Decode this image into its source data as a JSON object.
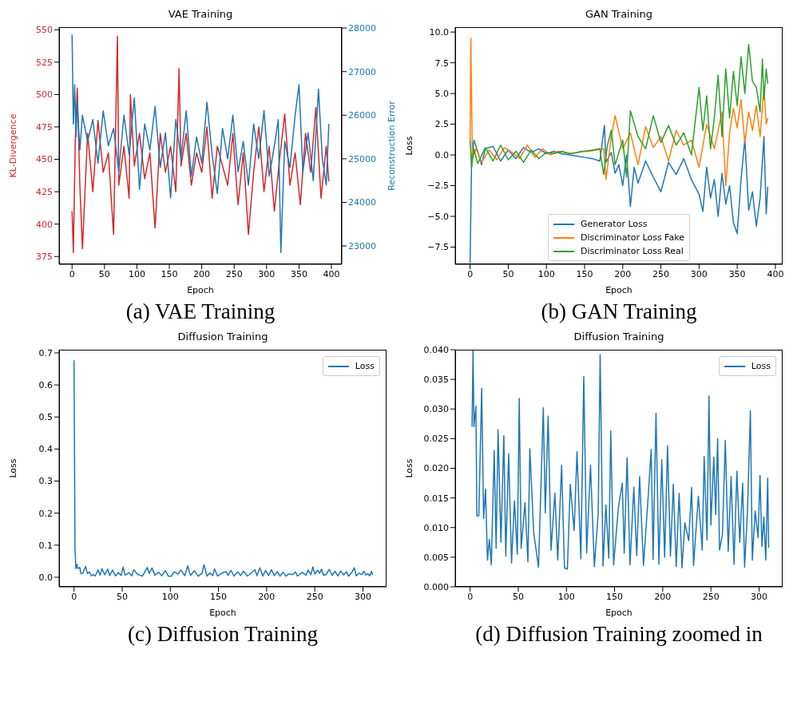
{
  "chart_data": [
    {
      "type": "line",
      "title": "VAE Training",
      "xlabel": "Epoch",
      "ylabel": "KL-Divergence",
      "y2label": "Reconstruction Error",
      "annotations": [
        "(a) VAE Training"
      ],
      "xlim": [
        -20,
        416
      ],
      "xticks": [
        0,
        50,
        100,
        150,
        200,
        250,
        300,
        350,
        400
      ],
      "ylim": [
        369,
        552
      ],
      "yticks": [
        375,
        400,
        425,
        450,
        475,
        500,
        525,
        550
      ],
      "y2lim": [
        22580,
        28020
      ],
      "y2ticks": [
        23000,
        24000,
        25000,
        26000,
        27000,
        28000
      ],
      "series": [
        {
          "color": "#d62728",
          "x": [
            0,
            2,
            5,
            8,
            12,
            16,
            24,
            32,
            40,
            48,
            56,
            64,
            68,
            70,
            72,
            80,
            88,
            90,
            96,
            104,
            112,
            120,
            128,
            136,
            144,
            152,
            160,
            165,
            168,
            176,
            184,
            192,
            200,
            208,
            216,
            224,
            232,
            240,
            248,
            256,
            264,
            272,
            280,
            288,
            296,
            304,
            312,
            320,
            328,
            336,
            344,
            352,
            360,
            368,
            376,
            384,
            392,
            396
          ],
          "values": [
            410,
            378,
            465,
            505,
            430,
            381,
            470,
            425,
            480,
            440,
            455,
            392,
            495,
            545,
            430,
            460,
            420,
            500,
            445,
            470,
            435,
            455,
            397,
            470,
            440,
            460,
            425,
            520,
            445,
            470,
            430,
            455,
            440,
            475,
            420,
            460,
            445,
            430,
            470,
            415,
            455,
            392,
            440,
            475,
            425,
            460,
            410,
            450,
            485,
            430,
            455,
            415,
            470,
            440,
            490,
            420,
            460,
            433
          ]
        },
        {
          "color": "#1f77b4",
          "axis": "y2",
          "x": [
            0,
            2,
            4,
            6,
            8,
            12,
            16,
            24,
            32,
            40,
            48,
            56,
            64,
            72,
            80,
            88,
            96,
            104,
            112,
            120,
            128,
            136,
            144,
            152,
            160,
            168,
            176,
            184,
            192,
            200,
            208,
            216,
            224,
            232,
            240,
            248,
            256,
            264,
            272,
            280,
            288,
            296,
            304,
            312,
            318,
            322,
            328,
            336,
            344,
            350,
            356,
            364,
            372,
            380,
            386,
            392,
            396
          ],
          "values": [
            27850,
            25800,
            26700,
            25500,
            26300,
            25200,
            26000,
            25400,
            25900,
            24900,
            26100,
            25300,
            25700,
            24700,
            26000,
            25100,
            26400,
            24300,
            25800,
            25200,
            26200,
            24800,
            25600,
            24100,
            25900,
            25000,
            26100,
            24600,
            25500,
            24900,
            26300,
            25100,
            24200,
            25700,
            25000,
            26000,
            24700,
            25400,
            24400,
            25800,
            25000,
            26100,
            24600,
            25300,
            25900,
            22850,
            25400,
            24800,
            26000,
            26700,
            24700,
            25600,
            24500,
            26600,
            25000,
            24400,
            25800
          ]
        }
      ]
    },
    {
      "type": "line",
      "title": "GAN Training",
      "xlabel": "Epoch",
      "ylabel": "Loss",
      "legend": "bottom",
      "annotations": [
        "(b) GAN Training"
      ],
      "xlim": [
        -19.5,
        409.5
      ],
      "xticks": [
        0,
        50,
        100,
        150,
        200,
        250,
        300,
        350,
        400
      ],
      "ylim": [
        -8.9,
        10.4
      ],
      "yticks": [
        {
          "value": -7.5,
          "label": "−7.5"
        },
        {
          "value": -5,
          "label": "−5.0"
        },
        {
          "value": -2.5,
          "label": "−2.5"
        },
        {
          "value": 0,
          "label": "0.0"
        },
        {
          "value": 2.5,
          "label": "2.5"
        },
        {
          "value": 5,
          "label": "5.0"
        },
        {
          "value": 7.5,
          "label": "7.5"
        },
        {
          "value": 10,
          "label": "10.0"
        }
      ],
      "series": [
        {
          "name": "Generator Loss",
          "color": "#1f77b4",
          "x": [
            0,
            2,
            5,
            10,
            15,
            20,
            30,
            40,
            50,
            60,
            70,
            80,
            90,
            100,
            110,
            120,
            130,
            140,
            150,
            160,
            170,
            176,
            178,
            185,
            190,
            195,
            200,
            205,
            210,
            215,
            220,
            230,
            240,
            250,
            260,
            270,
            280,
            290,
            300,
            305,
            310,
            315,
            320,
            325,
            330,
            335,
            340,
            345,
            350,
            355,
            360,
            365,
            370,
            375,
            380,
            385,
            388,
            390
          ],
          "values": [
            -8.8,
            -0.3,
            1.2,
            0.3,
            -0.8,
            0.5,
            0.7,
            -0.5,
            0.4,
            -0.3,
            0.6,
            0.2,
            0.5,
            0.1,
            0.3,
            0.1,
            0.0,
            -0.1,
            -0.2,
            -0.3,
            -0.5,
            2.4,
            -0.6,
            0.2,
            -1.5,
            -0.8,
            -2.5,
            0.0,
            -4.2,
            -1.0,
            -2.3,
            -0.5,
            -1.8,
            -3.0,
            -0.6,
            -1.6,
            -0.3,
            -2.0,
            -3.2,
            -4.6,
            -1.0,
            -3.5,
            -2.0,
            -5.0,
            -1.5,
            -4.0,
            -2.5,
            -5.5,
            -6.4,
            -2.0,
            1.3,
            -4.5,
            -3.0,
            -5.8,
            -3.5,
            1.5,
            -4.8,
            -2.6
          ]
        },
        {
          "name": "Discriminator Loss Fake",
          "color": "#ff7f0e",
          "x": [
            0,
            1,
            3,
            8,
            15,
            25,
            35,
            45,
            55,
            65,
            75,
            85,
            95,
            105,
            115,
            125,
            135,
            145,
            155,
            165,
            175,
            178,
            185,
            190,
            200,
            210,
            220,
            230,
            240,
            250,
            260,
            270,
            280,
            290,
            300,
            310,
            320,
            330,
            335,
            340,
            345,
            350,
            355,
            360,
            365,
            370,
            375,
            380,
            385,
            388,
            390
          ],
          "values": [
            1.2,
            9.5,
            -0.3,
            0.5,
            -0.6,
            0.4,
            -0.4,
            0.6,
            0.2,
            -0.3,
            0.8,
            -0.2,
            0.5,
            0.0,
            0.3,
            0.2,
            0.1,
            0.3,
            0.3,
            0.4,
            0.5,
            -2.0,
            1.5,
            3.2,
            0.5,
            1.8,
            -0.8,
            2.3,
            0.6,
            1.5,
            -0.5,
            2.0,
            0.8,
            1.2,
            -1.0,
            2.5,
            0.5,
            3.5,
            -2.5,
            1.8,
            3.8,
            2.2,
            4.5,
            1.0,
            3.5,
            2.0,
            4.0,
            1.5,
            5.5,
            2.5,
            3.0
          ]
        },
        {
          "name": "Discriminator Loss Real",
          "color": "#2ca02c",
          "x": [
            0,
            2,
            5,
            10,
            20,
            30,
            40,
            50,
            60,
            70,
            80,
            90,
            100,
            110,
            120,
            130,
            140,
            150,
            160,
            170,
            175,
            180,
            185,
            190,
            200,
            205,
            210,
            220,
            230,
            240,
            250,
            260,
            270,
            280,
            290,
            300,
            305,
            310,
            315,
            320,
            325,
            330,
            335,
            340,
            345,
            350,
            355,
            360,
            365,
            370,
            375,
            380,
            383,
            385,
            388,
            390
          ],
          "values": [
            1.2,
            -1.0,
            0.5,
            -0.7,
            0.6,
            -0.5,
            0.8,
            -0.4,
            0.3,
            -0.6,
            0.4,
            -0.3,
            0.2,
            0.1,
            0.3,
            0.1,
            0.2,
            0.3,
            0.4,
            0.5,
            -1.6,
            0.8,
            2.0,
            -0.8,
            1.2,
            -1.8,
            3.6,
            1.5,
            0.5,
            3.2,
            1.0,
            2.4,
            0.8,
            1.8,
            0.0,
            5.5,
            2.0,
            4.8,
            0.5,
            3.0,
            6.5,
            1.5,
            7.0,
            3.0,
            6.8,
            4.0,
            8.0,
            5.0,
            9.0,
            6.0,
            5.5,
            3.5,
            7.8,
            4.5,
            7.0,
            5.8
          ]
        }
      ]
    },
    {
      "type": "line",
      "title": "Diffusion Training",
      "xlabel": "Epoch",
      "ylabel": "Loss",
      "legend": "top right",
      "annotations": [
        "(c) Diffusion Training"
      ],
      "xlim": [
        -15.5,
        324.5
      ],
      "xticks": [
        0,
        50,
        100,
        150,
        200,
        250,
        300
      ],
      "ylim": [
        -0.03,
        0.71
      ],
      "yticks": [
        {
          "value": 0,
          "label": "0.0"
        },
        0.1,
        0.2,
        0.3,
        0.4,
        0.5,
        0.6,
        0.7
      ],
      "series": [
        {
          "name": "Loss",
          "color": "#1f77b4",
          "x": [
            0,
            1,
            2,
            3,
            4,
            6,
            7,
            9,
            12,
            14,
            16,
            18,
            20,
            22,
            25,
            27,
            29,
            32,
            35,
            37,
            40,
            43,
            46,
            49,
            51,
            53,
            57,
            60,
            62,
            66,
            71,
            76,
            78,
            81,
            84,
            88,
            91,
            95,
            98,
            101,
            104,
            108,
            111,
            115,
            118,
            121,
            125,
            129,
            133,
            135,
            138,
            141,
            144,
            146,
            149,
            154,
            158,
            160,
            163,
            166,
            170,
            173,
            176,
            180,
            185,
            188,
            190,
            193,
            196,
            199,
            202,
            205,
            208,
            211,
            214,
            217,
            220,
            223,
            227,
            230,
            232,
            237,
            241,
            243,
            246,
            248,
            250,
            253,
            255,
            257,
            259,
            262,
            265,
            268,
            271,
            274,
            277,
            280,
            283,
            285,
            288,
            291,
            293,
            296,
            299,
            301,
            303,
            305,
            307,
            309,
            310
          ],
          "values": [
            0.677,
            0.09,
            0.027,
            0.0398,
            0.027,
            0.0305,
            0.012,
            0.012,
            0.0335,
            0.0115,
            0.0165,
            0.0045,
            0.008,
            0.0037,
            0.023,
            0.0065,
            0.0265,
            0.0075,
            0.0255,
            0.0052,
            0.0225,
            0.004,
            0.0145,
            0.0055,
            0.0318,
            0.0065,
            0.0142,
            0.0042,
            0.0233,
            0.0092,
            0.0033,
            0.0302,
            0.0125,
            0.0288,
            0.0062,
            0.0158,
            0.0045,
            0.0205,
            0.0032,
            0.003,
            0.0173,
            0.0095,
            0.0228,
            0.0047,
            0.0355,
            0.0057,
            0.0205,
            0.0034,
            0.0125,
            0.0392,
            0.0035,
            0.0138,
            0.0048,
            0.0263,
            0.0037,
            0.0135,
            0.0175,
            0.0057,
            0.0218,
            0.0037,
            0.0168,
            0.0053,
            0.0186,
            0.0036,
            0.0155,
            0.0232,
            0.0046,
            0.0293,
            0.0038,
            0.0214,
            0.005,
            0.0238,
            0.0052,
            0.0173,
            0.0034,
            0.0158,
            0.0032,
            0.0108,
            0.0078,
            0.0168,
            0.0036,
            0.0153,
            0.0062,
            0.022,
            0.0079,
            0.0322,
            0.0104,
            0.0219,
            0.0122,
            0.025,
            0.0062,
            0.0088,
            0.0247,
            0.006,
            0.0186,
            0.0038,
            0.0195,
            0.0075,
            0.0175,
            0.0033,
            0.0128,
            0.0297,
            0.0045,
            0.0128,
            0.0083,
            0.0188,
            0.0068,
            0.0118,
            0.0045,
            0.0183,
            0.0066
          ]
        }
      ]
    },
    {
      "type": "line",
      "title": "Diffusion Training",
      "xlabel": "Epoch",
      "ylabel": "Loss",
      "legend": "top right",
      "annotations": [
        "(d) Diffusion Training zoomed in"
      ],
      "xlim": [
        -15.5,
        324.5
      ],
      "xticks": [
        0,
        50,
        100,
        150,
        200,
        250,
        300
      ],
      "ylim": [
        0,
        0.04
      ],
      "yticks": [
        {
          "value": 0,
          "label": "0.000"
        },
        {
          "value": 0.005,
          "label": "0.005"
        },
        {
          "value": 0.01,
          "label": "0.010"
        },
        {
          "value": 0.015,
          "label": "0.015"
        },
        {
          "value": 0.02,
          "label": "0.020"
        },
        {
          "value": 0.025,
          "label": "0.025"
        },
        {
          "value": 0.03,
          "label": "0.030"
        },
        {
          "value": 0.035,
          "label": "0.035"
        },
        {
          "value": 0.04,
          "label": "0.040"
        }
      ],
      "series": [
        {
          "name": "Loss",
          "color": "#1f77b4",
          "x": [
            2,
            3,
            4,
            6,
            7,
            9,
            12,
            14,
            16,
            18,
            20,
            22,
            25,
            27,
            29,
            32,
            35,
            37,
            40,
            43,
            46,
            49,
            51,
            53,
            57,
            60,
            62,
            66,
            71,
            76,
            78,
            81,
            84,
            88,
            91,
            95,
            98,
            101,
            104,
            108,
            111,
            115,
            118,
            121,
            125,
            129,
            133,
            135,
            138,
            141,
            144,
            146,
            149,
            154,
            158,
            160,
            163,
            166,
            170,
            173,
            176,
            180,
            185,
            188,
            190,
            193,
            196,
            199,
            202,
            205,
            208,
            211,
            214,
            217,
            220,
            223,
            227,
            230,
            232,
            237,
            241,
            243,
            246,
            248,
            250,
            253,
            255,
            257,
            259,
            262,
            265,
            268,
            271,
            274,
            277,
            280,
            283,
            285,
            288,
            291,
            293,
            296,
            299,
            301,
            303,
            305,
            307,
            309,
            310
          ],
          "values": [
            0.027,
            0.0398,
            0.027,
            0.0305,
            0.012,
            0.012,
            0.0335,
            0.0115,
            0.0165,
            0.0045,
            0.008,
            0.0037,
            0.023,
            0.0065,
            0.0265,
            0.0075,
            0.0255,
            0.0052,
            0.0225,
            0.004,
            0.0145,
            0.0055,
            0.0318,
            0.0065,
            0.0142,
            0.0042,
            0.0233,
            0.0092,
            0.0033,
            0.0302,
            0.0125,
            0.0288,
            0.0062,
            0.0158,
            0.0045,
            0.0205,
            0.0032,
            0.003,
            0.0173,
            0.0095,
            0.0228,
            0.0047,
            0.0355,
            0.0057,
            0.0205,
            0.0034,
            0.0125,
            0.0392,
            0.0035,
            0.0138,
            0.0048,
            0.0263,
            0.0037,
            0.0135,
            0.0175,
            0.0057,
            0.0218,
            0.0037,
            0.0168,
            0.0053,
            0.0186,
            0.0036,
            0.0155,
            0.0232,
            0.0046,
            0.0293,
            0.0038,
            0.0214,
            0.005,
            0.0238,
            0.0052,
            0.0173,
            0.0034,
            0.0158,
            0.0032,
            0.0108,
            0.0078,
            0.0168,
            0.0036,
            0.0153,
            0.0062,
            0.022,
            0.0079,
            0.0322,
            0.0104,
            0.0219,
            0.0122,
            0.025,
            0.0062,
            0.0088,
            0.0247,
            0.006,
            0.0186,
            0.0038,
            0.0195,
            0.0075,
            0.0175,
            0.0033,
            0.0128,
            0.0297,
            0.0045,
            0.0128,
            0.0083,
            0.0188,
            0.0068,
            0.0118,
            0.0045,
            0.0183,
            0.0066
          ]
        }
      ]
    }
  ]
}
